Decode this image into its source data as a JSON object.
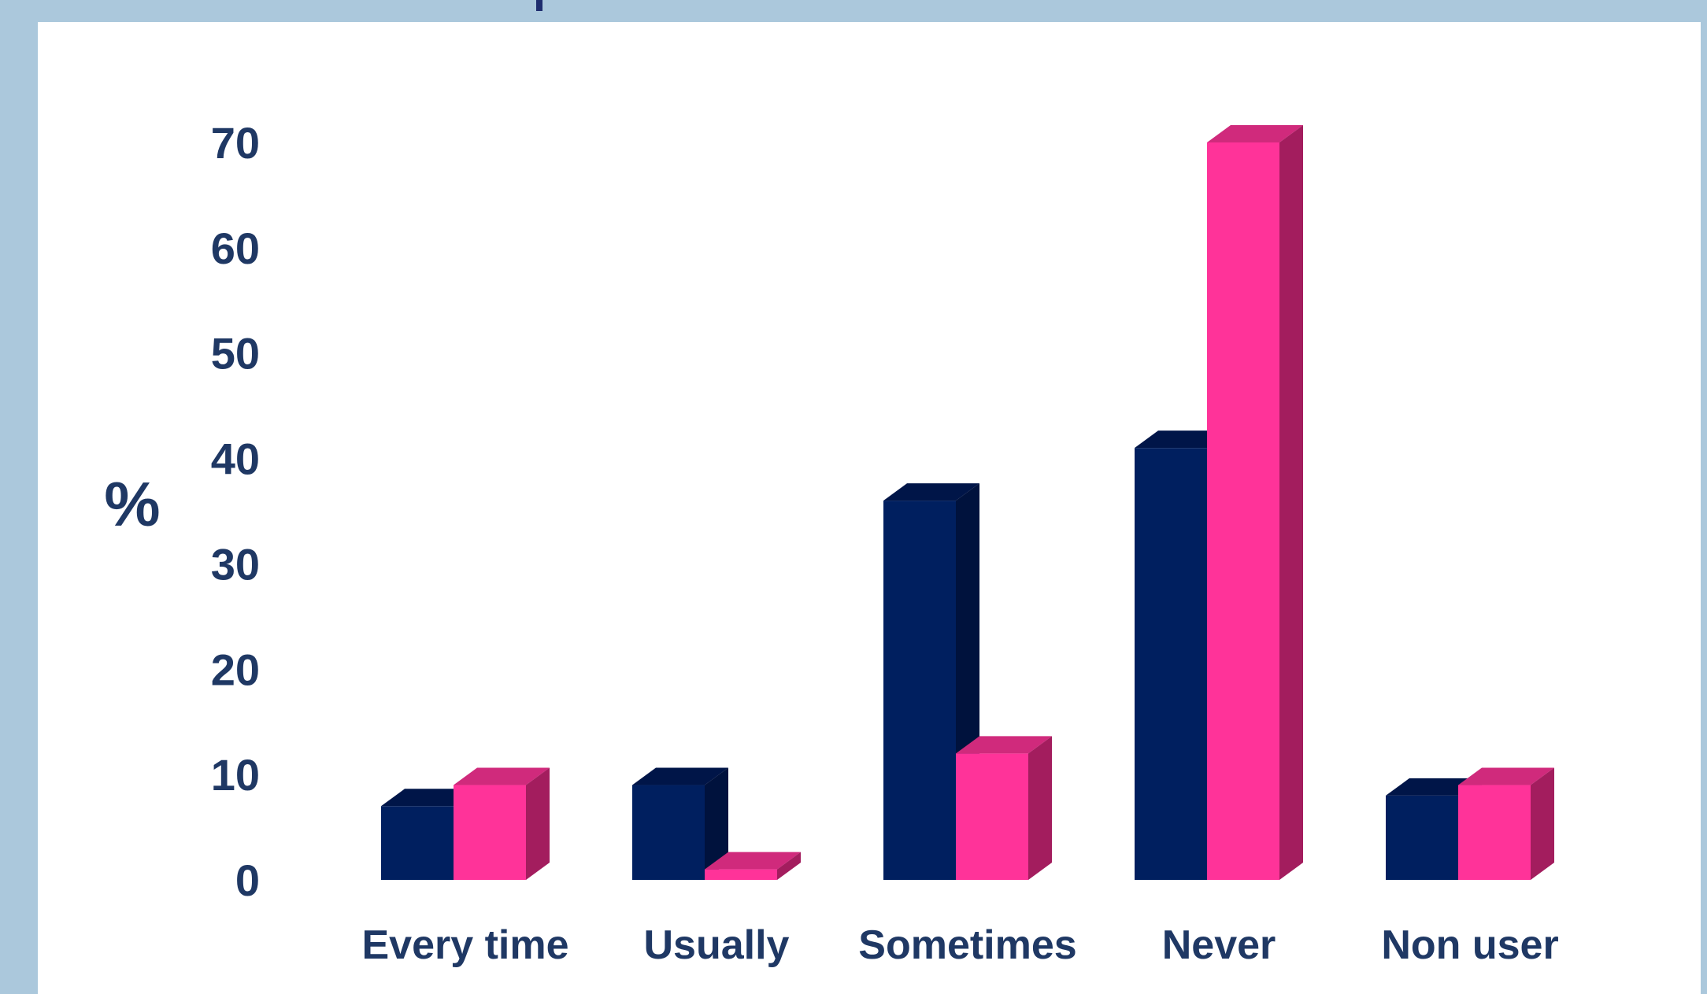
{
  "chart_data": {
    "type": "bar",
    "title": "",
    "xlabel": "",
    "ylabel": "%",
    "ylim": [
      0,
      70
    ],
    "yticks": [
      "0",
      "10",
      "20",
      "30",
      "40",
      "50",
      "60",
      "70"
    ],
    "categories": [
      "Every time",
      "Usually",
      "Sometimes",
      "Never",
      "Non user"
    ],
    "series": [
      {
        "values": [
          7,
          9,
          36,
          41,
          8
        ],
        "color": "#001f5f",
        "side_color": "#00123d",
        "top_color": "#001548"
      },
      {
        "values": [
          9,
          1,
          12,
          70,
          9
        ],
        "color": "#ff3399",
        "side_color": "#a31d5e",
        "top_color": "#d02a7c"
      }
    ],
    "grid": false,
    "legend": "none",
    "style": "3d-clustered-column"
  }
}
